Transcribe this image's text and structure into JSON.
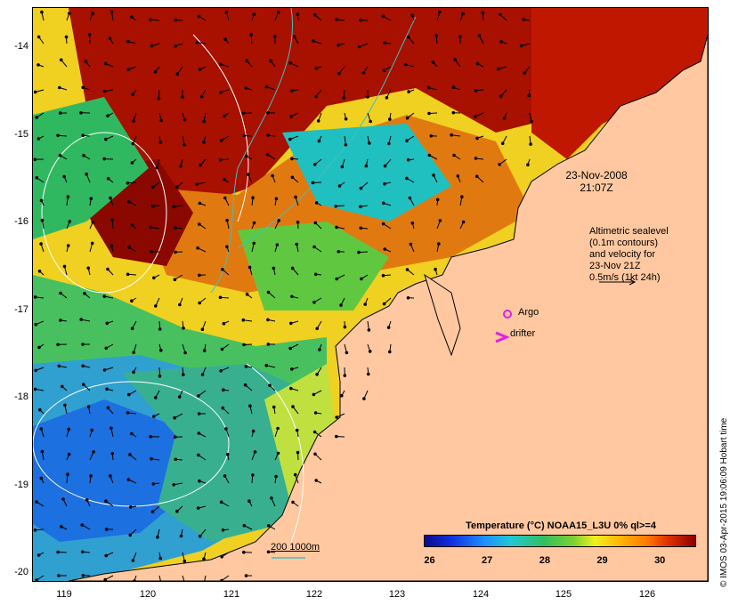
{
  "map": {
    "y_ticks": [
      "-14",
      "-15",
      "-16",
      "-17",
      "-18",
      "-19",
      "-20"
    ],
    "x_ticks": [
      "119",
      "120",
      "121",
      "122",
      "123",
      "124",
      "125",
      "126"
    ],
    "date_line1": "23-Nov-2008",
    "date_line2": "21:07Z",
    "altimetry_lines": [
      "Altimetric sealevel",
      "(0.1m contours)",
      "and velocity for",
      "23-Nov 21Z",
      "0.5m/s (1kt 24h)"
    ],
    "argo_label": "Argo",
    "drifter_label": "drifter",
    "scale_label": "200  1000m",
    "colorbar_title": "Temperature (°C) NOAA15_L3U 0% ql>=4",
    "colorbar_ticks": [
      "26",
      "27",
      "28",
      "29",
      "30"
    ],
    "colorbar_range": [
      25.9,
      30.6
    ],
    "credit": "© IMOS 03-Apr-2015 19:06:09 Hobart time",
    "colors": {
      "land": "#ffc8a0",
      "argo": "#e020e0",
      "drifter": "#e020e0",
      "bathymetry": "#40c0c0",
      "contours": "#ffffff"
    }
  }
}
